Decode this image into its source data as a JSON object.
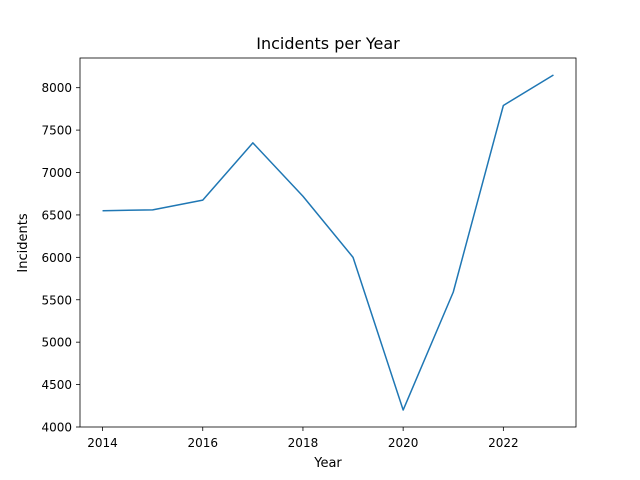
{
  "chart_data": {
    "type": "line",
    "title": "Incidents per Year",
    "xlabel": "Year",
    "ylabel": "Incidents",
    "x": [
      2014,
      2015,
      2016,
      2017,
      2018,
      2019,
      2020,
      2021,
      2022,
      2023
    ],
    "series": [
      {
        "values": [
          6550,
          6560,
          6675,
          7350,
          6720,
          6000,
          4200,
          5590,
          7790,
          8150
        ],
        "color": "#1f77b4"
      }
    ],
    "xticks": [
      2014,
      2016,
      2018,
      2020,
      2022
    ],
    "yticks": [
      4000,
      4500,
      5000,
      5500,
      6000,
      6500,
      7000,
      7500,
      8000
    ],
    "xlim": [
      2013.55,
      2023.45
    ],
    "ylim": [
      4000,
      8350
    ],
    "grid": false,
    "legend": "none"
  }
}
